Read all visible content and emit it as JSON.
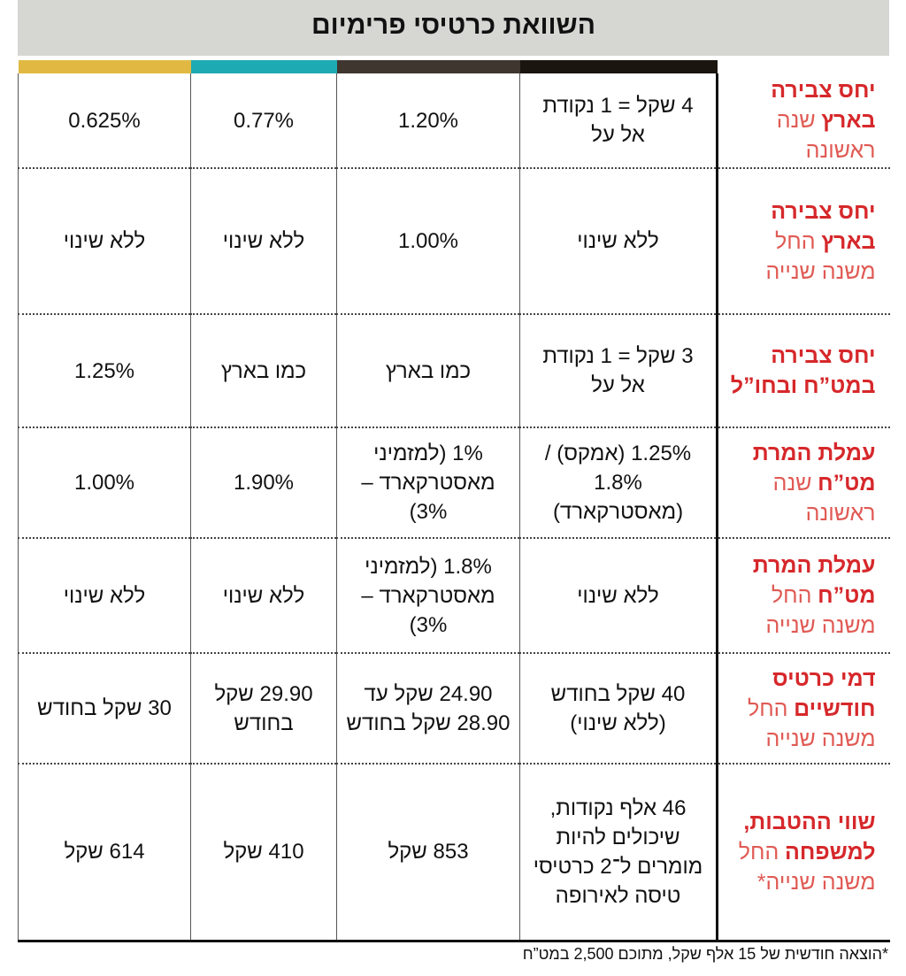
{
  "header": {
    "title": "השוואת כרטיסי פרימיום"
  },
  "table": {
    "rows": [
      {
        "label": "יחס צבירה בארץ",
        "sublabel": "שנה ראשונה",
        "cells": [
          "4 שקל = 1 נקודת אל על",
          "1.20%",
          "0.77%",
          "0.625%"
        ]
      },
      {
        "label": "יחס צבירה בארץ",
        "sublabel": "החל משנה שנייה",
        "cells": [
          "ללא שינוי",
          "1.00%",
          "ללא שינוי",
          "ללא שינוי"
        ]
      },
      {
        "label": "יחס צבירה במט”ח ובחו”ל",
        "cells": [
          "3 שקל = 1 נקודת אל על",
          "כמו בארץ",
          "כמו בארץ",
          "1.25%"
        ]
      },
      {
        "label": "עמלת המרת מט”ח",
        "sublabel": "שנה ראשונה",
        "cells": [
          "1.25% (אמקס) / 1.8% (מאסטרקארד)",
          "1% (למזמיני מאסטרקארד – 3%)",
          "1.90%",
          "1.00%"
        ]
      },
      {
        "label": "עמלת המרת מט”ח",
        "sublabel": "החל משנה שנייה",
        "cells": [
          "ללא שינוי",
          "1.8% (למזמיני מאסטרקארד – 3%)",
          "ללא שינוי",
          "ללא שינוי"
        ]
      },
      {
        "label": "דמי כרטיס חודשיים",
        "sublabel": "החל משנה שנייה",
        "cells": [
          "40 שקל בחודש (ללא שינוי)",
          "24.90 שקל עד 28.90 שקל בחודש",
          "29.90 שקל בחודש",
          "30 שקל בחודש"
        ]
      },
      {
        "label": "שווי ההטבות, למשפחה",
        "sublabel": "החל משנה שנייה*",
        "cells": [
          "46 אלף נקודות, שיכולים להיות מומרים ל־2 כרטיסי טיסה לאירופה",
          "853 שקל",
          "410 שקל",
          "614 שקל"
        ]
      }
    ]
  },
  "footnote": "*הוצאה חודשית של 15 אלף שקל, מתוכם 2,500 במט”ח"
}
